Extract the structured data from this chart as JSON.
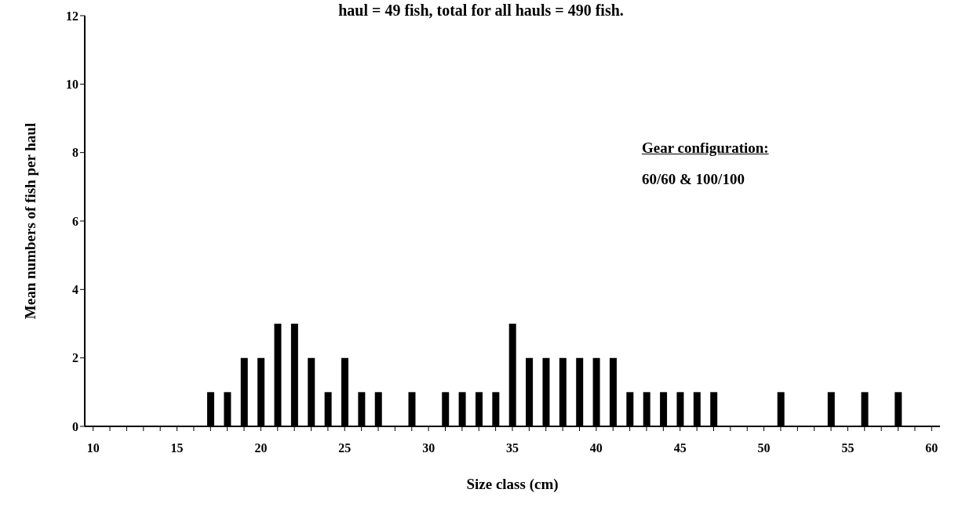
{
  "chart_data": {
    "type": "bar",
    "title": "haul = 49 fish, total for all hauls = 490 fish.",
    "xlabel": "Size class (cm)",
    "ylabel": "Mean numbers of fish per haul",
    "categories": [
      "10",
      null,
      null,
      null,
      null,
      "15",
      null,
      null,
      null,
      null,
      "20",
      null,
      null,
      null,
      null,
      "25",
      null,
      null,
      null,
      null,
      "30",
      null,
      null,
      null,
      null,
      "35",
      null,
      null,
      null,
      null,
      "40",
      null,
      null,
      null,
      null,
      "45",
      null,
      null,
      null,
      null,
      "50",
      null,
      null,
      null,
      null,
      "55",
      null,
      null,
      null,
      null,
      "60"
    ],
    "values": [
      0,
      0,
      0,
      0,
      0,
      0,
      0,
      1,
      1,
      2,
      2,
      3,
      3,
      2,
      1,
      2,
      1,
      1,
      0,
      1,
      0,
      1,
      1,
      1,
      1,
      3,
      2,
      2,
      2,
      2,
      2,
      2,
      1,
      1,
      1,
      1,
      1,
      1,
      0,
      0,
      0,
      1,
      0,
      0,
      1,
      0,
      1,
      0,
      1,
      0,
      0
    ],
    "color": "#000000",
    "ylim": [
      0,
      12
    ],
    "yticks": [
      0,
      2,
      4,
      6,
      8,
      10,
      12
    ],
    "grid": false,
    "annotations": [
      "Gear configuration:",
      "60/60 & 100/100"
    ]
  }
}
